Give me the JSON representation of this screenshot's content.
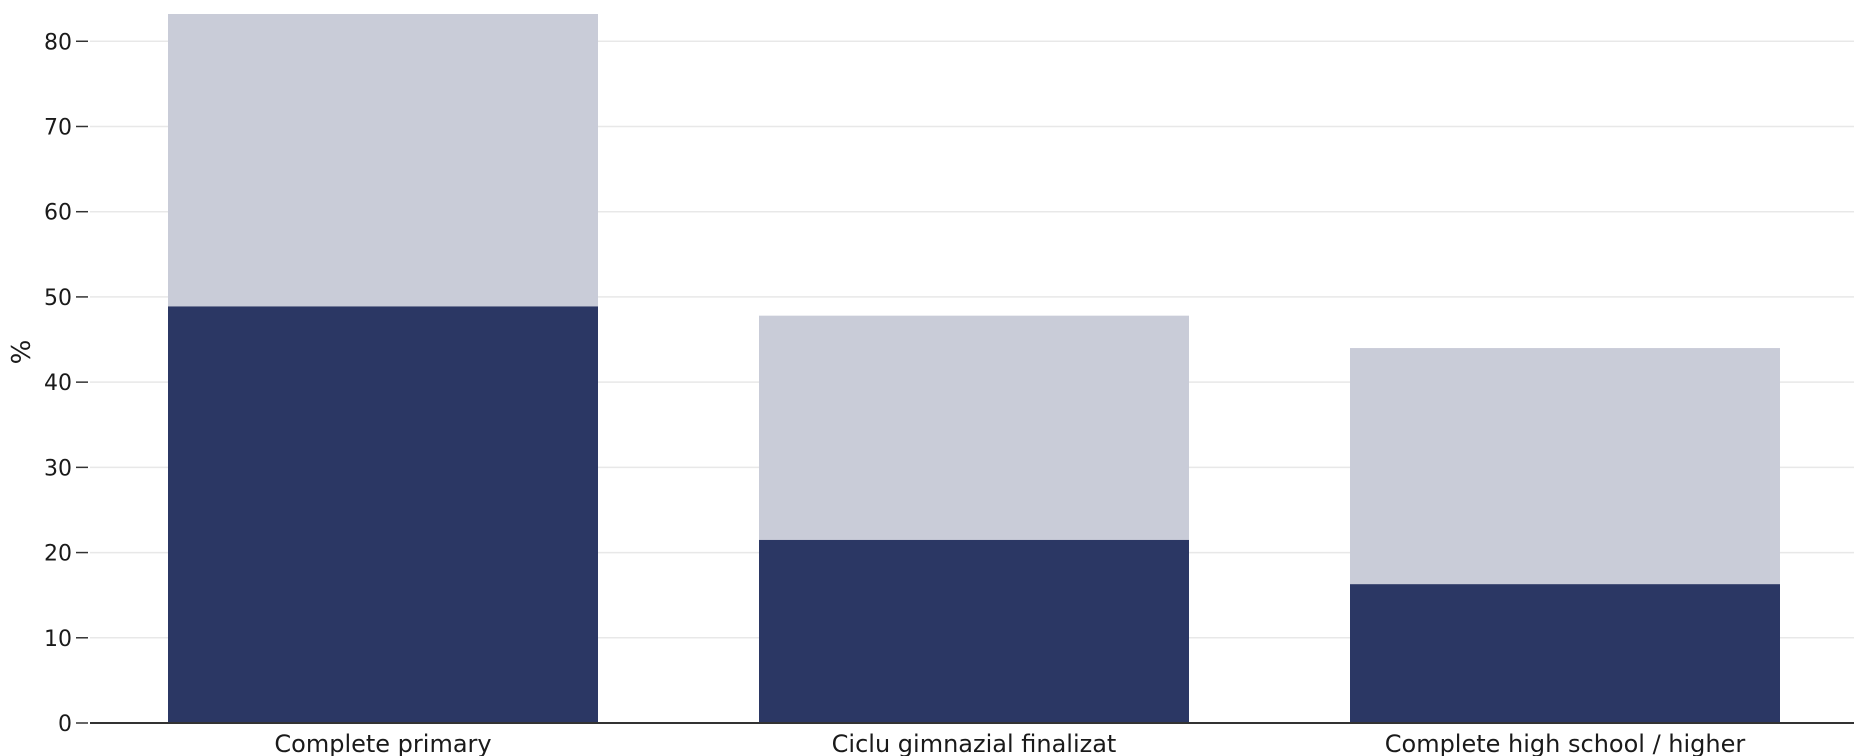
{
  "chart_data": {
    "type": "bar",
    "stacked": true,
    "categories": [
      "Complete primary",
      "Ciclu gimnazial finalizat",
      "Complete high school / higher"
    ],
    "series": [
      {
        "values": [
          48.9,
          21.5,
          16.3
        ],
        "color": "#2b3764"
      },
      {
        "values": [
          34.3,
          26.3,
          27.7
        ],
        "color": "#c9ccd8"
      }
    ],
    "ylabel": "%",
    "xlabel": "",
    "ylim": [
      0,
      83.2
    ],
    "yticks": [
      0,
      10,
      20,
      30,
      40,
      50,
      60,
      70,
      80
    ],
    "grid": true,
    "legend": "none"
  }
}
